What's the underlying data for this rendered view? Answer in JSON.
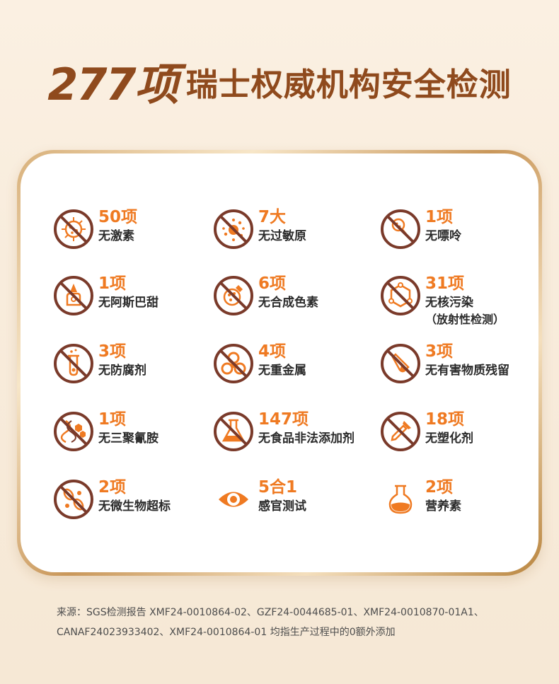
{
  "headline": {
    "number": "277项",
    "text": "瑞士权威机构安全检测"
  },
  "items": [
    {
      "value": "50项",
      "label": "无激素",
      "icon": "hormone-prohibited-icon"
    },
    {
      "value": "7大",
      "label": "无过敏原",
      "icon": "allergen-prohibited-icon"
    },
    {
      "value": "1项",
      "label": "无嘌呤",
      "icon": "purine-prohibited-icon"
    },
    {
      "value": "1项",
      "label": "无阿斯巴甜",
      "icon": "aspartame-prohibited-icon"
    },
    {
      "value": "6项",
      "label": "无合成色素",
      "icon": "synthetic-color-prohibited-icon"
    },
    {
      "value": "31项",
      "label": "无核污染",
      "sub": "（放射性检测）",
      "icon": "nuclear-pollution-prohibited-icon"
    },
    {
      "value": "3项",
      "label": "无防腐剂",
      "icon": "preservative-prohibited-icon"
    },
    {
      "value": "4项",
      "label": "无重金属",
      "icon": "heavy-metal-prohibited-icon"
    },
    {
      "value": "3项",
      "label": "无有害物质残留",
      "icon": "harmful-residue-prohibited-icon"
    },
    {
      "value": "1项",
      "label": "无三聚氰胺",
      "icon": "melamine-prohibited-icon"
    },
    {
      "value": "147项",
      "label": "无食品非法添加剂",
      "icon": "illegal-additive-prohibited-icon"
    },
    {
      "value": "18项",
      "label": "无塑化剂",
      "icon": "plasticizer-prohibited-icon"
    },
    {
      "value": "2项",
      "label": "无微生物超标",
      "icon": "microbe-prohibited-icon"
    },
    {
      "value": "5合1",
      "label": "感官测试",
      "icon": "eye-icon"
    },
    {
      "value": "2项",
      "label": "营养素",
      "icon": "flask-icon"
    }
  ],
  "source": {
    "line1": "来源：SGS检测报告 XMF24-0010864-02、GZF24-0044685-01、XMF24-0010870-01A1、",
    "line2": "CANAF24023933402、XMF24-0010864-01 均指生产过程中的0额外添加"
  },
  "colors": {
    "brown": "#8f4a1d",
    "orange": "#ef7a22",
    "dark": "#2b2b2b",
    "ring": "#7a3a2a"
  }
}
